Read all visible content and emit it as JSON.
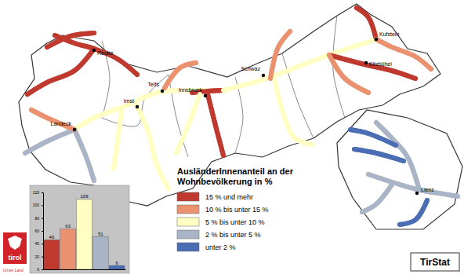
{
  "title_lines": [
    "AusländerInnenanteil an der",
    "Wohnbevölkerung in %"
  ],
  "legend": [
    {
      "label": "15 % und mehr",
      "color": "#c0392f"
    },
    {
      "label": "10 % bis unter 15 %",
      "color": "#ea9270"
    },
    {
      "label": "5 % bis unter 10 %",
      "color": "#ffffc4"
    },
    {
      "label": "2 % bis unter 5 %",
      "color": "#a9b5c6"
    },
    {
      "label": "unter 2 %",
      "color": "#4a6db3"
    }
  ],
  "towns": [
    "Reutte",
    "Kufstein",
    "Kitzbühel",
    "Schwaz",
    "Telfs",
    "Innsbruck",
    "Imst",
    "Landeck",
    "Lienz"
  ],
  "valley_classes": [
    2,
    0,
    2,
    0,
    0,
    2,
    2,
    3,
    3,
    1,
    2,
    0,
    2,
    1,
    0,
    1,
    0,
    1,
    0,
    1,
    3,
    3,
    4,
    4,
    3,
    4
  ],
  "chart_data": {
    "type": "bar",
    "categories": [
      null,
      null,
      null,
      null,
      null
    ],
    "values": [
      46,
      63,
      109,
      51,
      6
    ],
    "colors": [
      "#c0392f",
      "#ea9270",
      "#ffffc4",
      "#a9b5c6",
      "#4a6db3"
    ],
    "ylim": [
      0,
      120
    ],
    "yticks": [
      0,
      20,
      40,
      60,
      80,
      100,
      120
    ],
    "data_labels": true
  },
  "logo": {
    "name": "tirol",
    "tagline": "Unser Land"
  },
  "source": "TirStat"
}
